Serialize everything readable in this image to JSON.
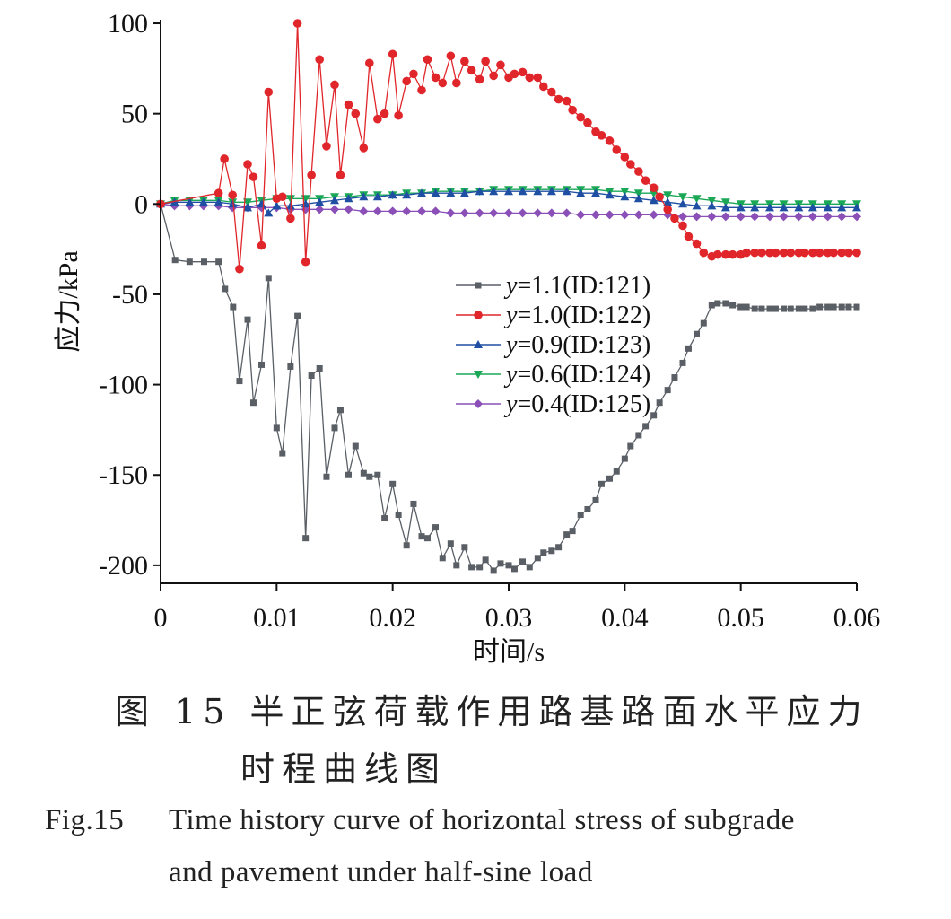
{
  "chart_data": {
    "type": "line",
    "xlabel": "时间/s",
    "ylabel": "应力/kPa",
    "xlim": [
      0,
      0.06
    ],
    "ylim": [
      -210,
      102
    ],
    "x_ticks": [
      "0",
      "0.01",
      "0.02",
      "0.03",
      "0.04",
      "0.05",
      "0.06"
    ],
    "y_ticks": [
      "100",
      "50",
      "0",
      "-50",
      "-100",
      "-150",
      "-200"
    ],
    "grid": false,
    "legend_position": "center-right",
    "series": [
      {
        "name": "y=1.1(ID:121)",
        "color": "#5a5f66",
        "marker": "square",
        "x": [
          0,
          0.00125,
          0.0025,
          0.00375,
          0.005,
          0.00555,
          0.00625,
          0.0068,
          0.0075,
          0.008,
          0.0087,
          0.0093,
          0.01,
          0.0105,
          0.0112,
          0.0118,
          0.0125,
          0.013,
          0.0137,
          0.0143,
          0.015,
          0.0155,
          0.0162,
          0.0168,
          0.0175,
          0.018,
          0.0187,
          0.0193,
          0.02,
          0.0205,
          0.0212,
          0.0218,
          0.0225,
          0.023,
          0.0237,
          0.0243,
          0.025,
          0.0255,
          0.0262,
          0.0268,
          0.0275,
          0.028,
          0.0287,
          0.0293,
          0.03,
          0.0305,
          0.0312,
          0.0318,
          0.0325,
          0.033,
          0.0337,
          0.0343,
          0.035,
          0.0355,
          0.0362,
          0.0368,
          0.0375,
          0.038,
          0.0387,
          0.0393,
          0.04,
          0.0405,
          0.0412,
          0.0418,
          0.0425,
          0.043,
          0.0437,
          0.0443,
          0.045,
          0.0455,
          0.0462,
          0.0468,
          0.0475,
          0.048,
          0.0487,
          0.0493,
          0.05,
          0.0505,
          0.0512,
          0.0518,
          0.0525,
          0.053,
          0.0537,
          0.0543,
          0.055,
          0.0555,
          0.0562,
          0.0568,
          0.0575,
          0.058,
          0.0587,
          0.0593,
          0.06
        ],
        "y": [
          0,
          -31,
          -32,
          -32,
          -32,
          -47,
          -57,
          -98,
          -64,
          -110,
          -89,
          -41,
          -124,
          -138,
          -90,
          -62,
          -185,
          -95,
          -91,
          -151,
          -124,
          -114,
          -150,
          -134,
          -149,
          -151,
          -150,
          -174,
          -155,
          -172,
          -189,
          -166,
          -184,
          -185,
          -179,
          -196,
          -188,
          -200,
          -190,
          -201,
          -201,
          -197,
          -203,
          -199,
          -200,
          -202,
          -198,
          -201,
          -196,
          -193,
          -192,
          -190,
          -183,
          -181,
          -172,
          -169,
          -164,
          -155,
          -152,
          -148,
          -141,
          -134,
          -128,
          -123,
          -117,
          -110,
          -103,
          -96,
          -88,
          -80,
          -72,
          -66,
          -56,
          -55,
          -55,
          -56,
          -57,
          -57,
          -58,
          -58,
          -58,
          -58,
          -58,
          -58,
          -58,
          -58,
          -58,
          -57,
          -57,
          -57,
          -57,
          -57,
          -57
        ]
      },
      {
        "name": "y=1.0(ID:122)",
        "color": "#e0262b",
        "marker": "circle",
        "x": [
          0,
          0.005,
          0.0055,
          0.0062,
          0.0068,
          0.0075,
          0.008,
          0.0087,
          0.0093,
          0.01,
          0.0105,
          0.0112,
          0.0118,
          0.0125,
          0.013,
          0.0137,
          0.0143,
          0.015,
          0.0155,
          0.0162,
          0.0168,
          0.0175,
          0.018,
          0.0187,
          0.0193,
          0.02,
          0.0205,
          0.0212,
          0.0218,
          0.0225,
          0.023,
          0.0237,
          0.0243,
          0.025,
          0.0255,
          0.0262,
          0.0268,
          0.0275,
          0.028,
          0.0287,
          0.0293,
          0.03,
          0.0305,
          0.0312,
          0.0318,
          0.0325,
          0.033,
          0.0337,
          0.0343,
          0.035,
          0.0355,
          0.0362,
          0.0368,
          0.0375,
          0.038,
          0.0387,
          0.0393,
          0.04,
          0.0405,
          0.0412,
          0.0418,
          0.0425,
          0.043,
          0.0437,
          0.0443,
          0.045,
          0.0455,
          0.0462,
          0.0468,
          0.0475,
          0.048,
          0.0487,
          0.0493,
          0.05,
          0.0505,
          0.0512,
          0.0518,
          0.0525,
          0.053,
          0.0537,
          0.0543,
          0.055,
          0.0555,
          0.0562,
          0.0568,
          0.0575,
          0.058,
          0.0587,
          0.0593,
          0.06
        ],
        "y": [
          0,
          6,
          25,
          5,
          -36,
          22,
          15,
          -23,
          62,
          3,
          4,
          -8,
          100,
          -32,
          16,
          80,
          32,
          66,
          16,
          55,
          50,
          31,
          78,
          47,
          50,
          83,
          49,
          68,
          72,
          63,
          80,
          70,
          67,
          82,
          67,
          79,
          74,
          69,
          79,
          71,
          77,
          70,
          72,
          73,
          70,
          70,
          65,
          62,
          58,
          57,
          52,
          48,
          45,
          40,
          38,
          35,
          30,
          26,
          22,
          18,
          13,
          9,
          4,
          -3,
          -8,
          -12,
          -18,
          -22,
          -27,
          -29,
          -28,
          -28,
          -28,
          -28,
          -27,
          -27,
          -27,
          -27,
          -27,
          -27,
          -27,
          -27,
          -27,
          -27,
          -27,
          -27,
          -27,
          -27,
          -27,
          -27
        ]
      },
      {
        "name": "y=0.9(ID:123)",
        "color": "#1f4fa3",
        "marker": "triangle-up",
        "x": [
          0,
          0.0012,
          0.0025,
          0.0037,
          0.005,
          0.0062,
          0.0075,
          0.0087,
          0.0093,
          0.01,
          0.0112,
          0.0125,
          0.0137,
          0.015,
          0.0162,
          0.0175,
          0.0187,
          0.02,
          0.0212,
          0.0225,
          0.0237,
          0.025,
          0.0262,
          0.0275,
          0.0287,
          0.03,
          0.0312,
          0.0325,
          0.0337,
          0.035,
          0.0362,
          0.0375,
          0.0387,
          0.04,
          0.0412,
          0.0425,
          0.0437,
          0.045,
          0.0462,
          0.0475,
          0.0487,
          0.05,
          0.0512,
          0.0525,
          0.0537,
          0.055,
          0.0562,
          0.0575,
          0.0587,
          0.06
        ],
        "y": [
          0,
          1,
          1,
          1,
          1,
          0,
          -2,
          0,
          -5,
          -1,
          -1,
          0,
          1,
          2,
          3,
          4,
          4,
          5,
          5,
          6,
          6,
          6,
          6,
          7,
          7,
          7,
          7,
          7,
          7,
          7,
          6,
          6,
          5,
          4,
          3,
          2,
          1,
          0,
          -1,
          -1,
          -2,
          -2,
          -2,
          -2,
          -2,
          -2,
          -2,
          -2,
          -2,
          -2
        ]
      },
      {
        "name": "y=0.6(ID:124)",
        "color": "#1aa857",
        "marker": "triangle-down",
        "x": [
          0,
          0.0012,
          0.0025,
          0.0037,
          0.005,
          0.0062,
          0.0075,
          0.0087,
          0.01,
          0.0112,
          0.0125,
          0.0137,
          0.015,
          0.0162,
          0.0175,
          0.0187,
          0.02,
          0.0212,
          0.0225,
          0.0237,
          0.025,
          0.0262,
          0.0275,
          0.0287,
          0.03,
          0.0312,
          0.0325,
          0.0337,
          0.035,
          0.0362,
          0.0375,
          0.0387,
          0.04,
          0.0412,
          0.0425,
          0.0437,
          0.045,
          0.0462,
          0.0475,
          0.0487,
          0.05,
          0.0512,
          0.0525,
          0.0537,
          0.055,
          0.0562,
          0.0575,
          0.0587,
          0.06
        ],
        "y": [
          0,
          2,
          2,
          2,
          2,
          1,
          1,
          2,
          3,
          3,
          3,
          3,
          4,
          4,
          5,
          5,
          5,
          6,
          6,
          7,
          7,
          7,
          7,
          8,
          8,
          8,
          8,
          8,
          8,
          8,
          8,
          7,
          7,
          6,
          6,
          5,
          4,
          3,
          2,
          1,
          0,
          0,
          0,
          0,
          0,
          0,
          0,
          0,
          0
        ]
      },
      {
        "name": "y=0.4(ID:125)",
        "color": "#8b4fb8",
        "marker": "diamond",
        "x": [
          0,
          0.0012,
          0.0025,
          0.0037,
          0.005,
          0.0062,
          0.0075,
          0.0087,
          0.01,
          0.0112,
          0.0125,
          0.0137,
          0.015,
          0.0162,
          0.0175,
          0.0187,
          0.02,
          0.0212,
          0.0225,
          0.0237,
          0.025,
          0.0262,
          0.0275,
          0.0287,
          0.03,
          0.0312,
          0.0325,
          0.0337,
          0.035,
          0.0362,
          0.0375,
          0.0387,
          0.04,
          0.0412,
          0.0425,
          0.0437,
          0.045,
          0.0462,
          0.0475,
          0.0487,
          0.05,
          0.0512,
          0.0525,
          0.0537,
          0.055,
          0.0562,
          0.0575,
          0.0587,
          0.06
        ],
        "y": [
          0,
          -1,
          -1,
          -1,
          -1,
          -2,
          -2,
          -2,
          -2,
          -3,
          -3,
          -3,
          -3,
          -3,
          -4,
          -4,
          -4,
          -4,
          -4,
          -4,
          -5,
          -5,
          -5,
          -5,
          -5,
          -5,
          -5,
          -5,
          -5,
          -6,
          -6,
          -6,
          -6,
          -6,
          -6,
          -6,
          -7,
          -7,
          -7,
          -7,
          -7,
          -7,
          -7,
          -7,
          -7,
          -7,
          -7,
          -7,
          -7
        ]
      }
    ]
  },
  "caption": {
    "cn_line1": "图 15 半正弦荷载作用路基路面水平应力",
    "cn_line2": "时程曲线图",
    "en_label": "Fig.15",
    "en_line1": "Time history curve of horizontal stress of subgrade",
    "en_line2": "and pavement under half-sine load"
  }
}
